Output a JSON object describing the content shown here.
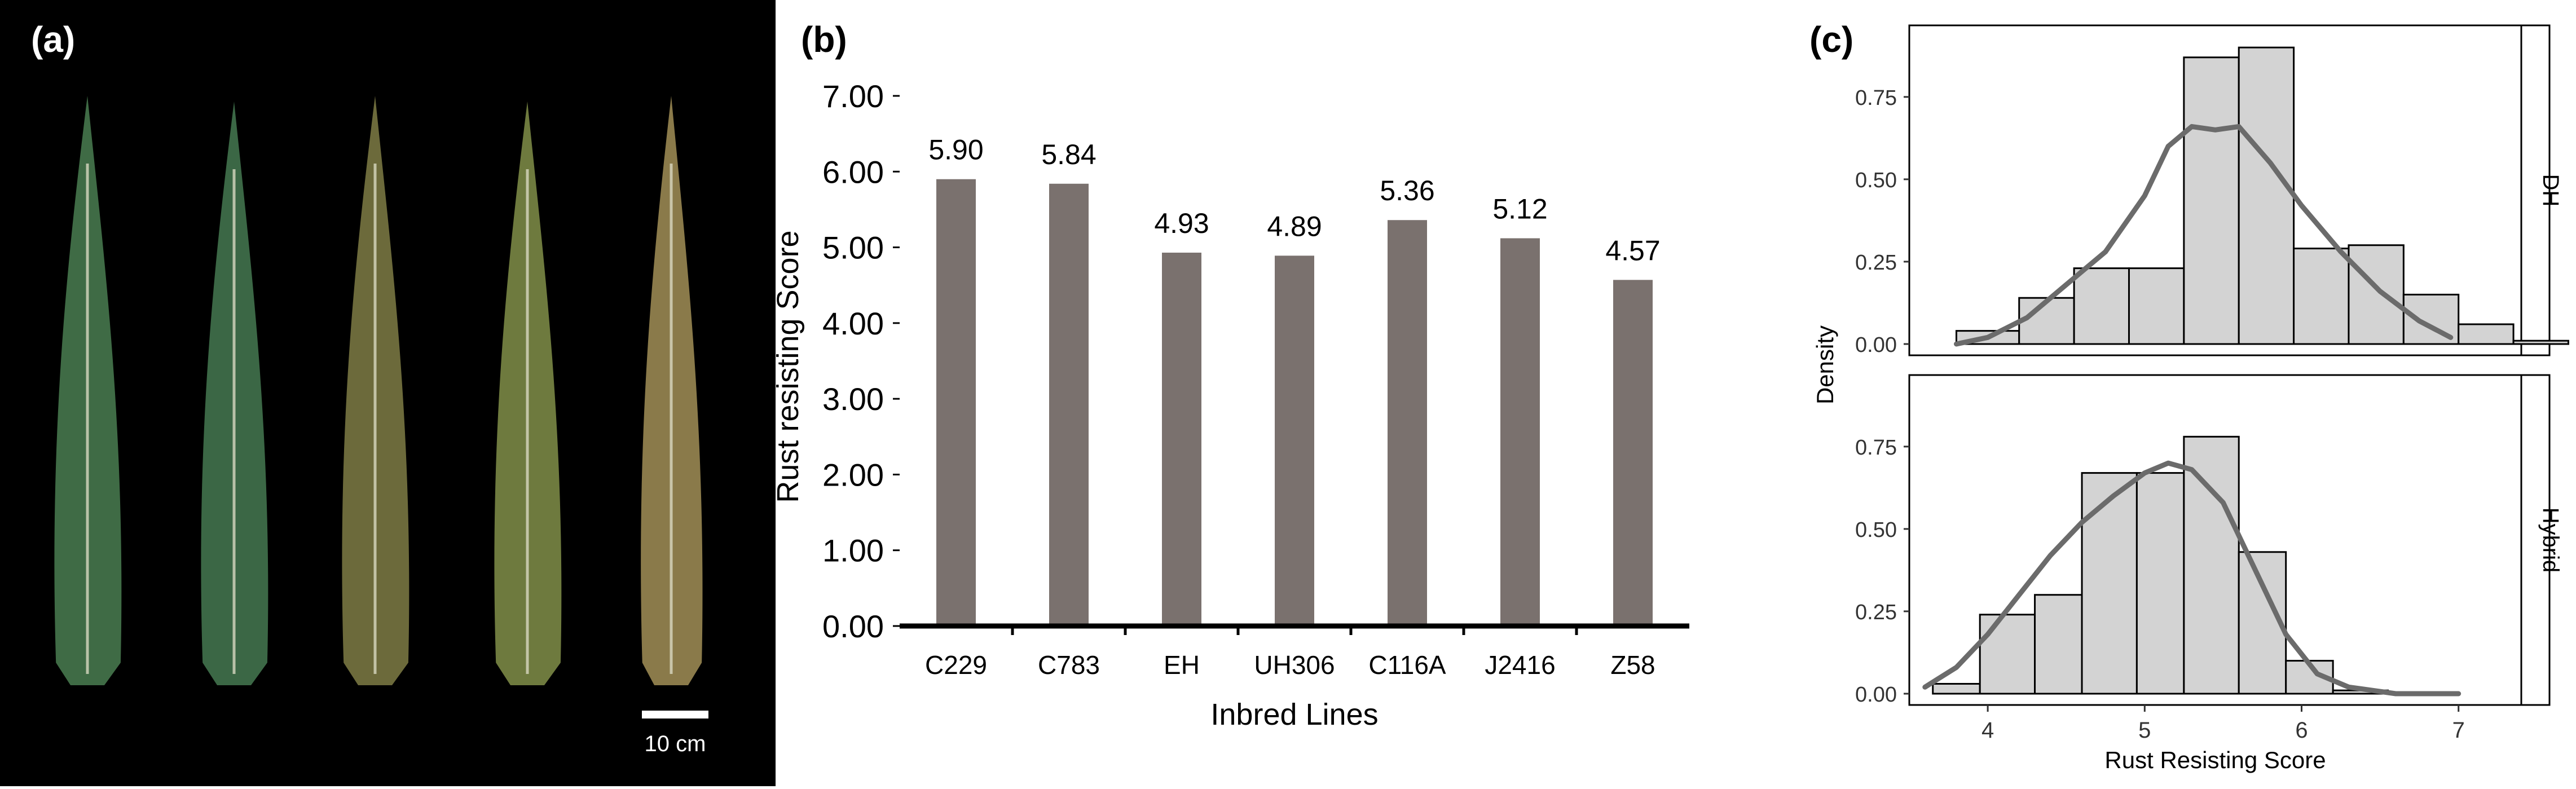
{
  "panel_a": {
    "label": "(a)",
    "scale_bar_label": "10 cm",
    "leaf_colors": [
      "#3f6b45",
      "#3b6745",
      "#6c6a3b",
      "#6e7a3e",
      "#8a7a4a"
    ]
  },
  "panel_b": {
    "label": "(b)"
  },
  "panel_c": {
    "label": "(c)"
  },
  "chart_data": [
    {
      "type": "bar",
      "panel": "(b)",
      "categories": [
        "C229",
        "C783",
        "EH",
        "UH306",
        "C116A",
        "J2416",
        "Z58"
      ],
      "values": [
        5.9,
        5.84,
        4.93,
        4.89,
        5.36,
        5.12,
        4.57
      ],
      "value_labels": [
        "5.90",
        "5.84",
        "4.93",
        "4.89",
        "5.36",
        "5.12",
        "4.57"
      ],
      "title": "",
      "xlabel": "Inbred Lines",
      "ylabel": "Rust resisting Score",
      "ylim": [
        0,
        7
      ],
      "yticks": [
        "0.00",
        "1.00",
        "2.00",
        "3.00",
        "4.00",
        "5.00",
        "6.00",
        "7.00"
      ],
      "bar_color": "#7a716e",
      "grid": false
    },
    {
      "type": "histogram",
      "panel": "(c)",
      "facets": [
        {
          "strip_label": "DH",
          "bins": [
            {
              "x0": 3.8,
              "x1": 4.2,
              "density": 0.04
            },
            {
              "x0": 4.2,
              "x1": 4.55,
              "density": 0.14
            },
            {
              "x0": 4.55,
              "x1": 4.9,
              "density": 0.23
            },
            {
              "x0": 4.9,
              "x1": 5.25,
              "density": 0.23
            },
            {
              "x0": 5.25,
              "x1": 5.6,
              "density": 0.87
            },
            {
              "x0": 5.6,
              "x1": 5.95,
              "density": 0.9
            },
            {
              "x0": 5.95,
              "x1": 6.3,
              "density": 0.29
            },
            {
              "x0": 6.3,
              "x1": 6.65,
              "density": 0.3
            },
            {
              "x0": 6.65,
              "x1": 7.0,
              "density": 0.15
            },
            {
              "x0": 7.0,
              "x1": 7.35,
              "density": 0.06
            },
            {
              "x0": 7.35,
              "x1": 7.7,
              "density": 0.01
            }
          ],
          "density_curve": {
            "x": [
              3.8,
              4.0,
              4.25,
              4.5,
              4.75,
              5.0,
              5.15,
              5.3,
              5.45,
              5.6,
              5.8,
              6.0,
              6.25,
              6.5,
              6.75,
              6.95
            ],
            "y": [
              0.0,
              0.02,
              0.08,
              0.18,
              0.28,
              0.45,
              0.6,
              0.66,
              0.65,
              0.66,
              0.55,
              0.42,
              0.28,
              0.16,
              0.07,
              0.02
            ]
          }
        },
        {
          "strip_label": "Hybrid",
          "bins": [
            {
              "x0": 3.65,
              "x1": 3.95,
              "density": 0.03
            },
            {
              "x0": 3.95,
              "x1": 4.3,
              "density": 0.24
            },
            {
              "x0": 4.3,
              "x1": 4.6,
              "density": 0.3
            },
            {
              "x0": 4.6,
              "x1": 4.95,
              "density": 0.67
            },
            {
              "x0": 4.95,
              "x1": 5.25,
              "density": 0.67
            },
            {
              "x0": 5.25,
              "x1": 5.6,
              "density": 0.78
            },
            {
              "x0": 5.6,
              "x1": 5.9,
              "density": 0.43
            },
            {
              "x0": 5.9,
              "x1": 6.2,
              "density": 0.1
            },
            {
              "x0": 6.2,
              "x1": 6.55,
              "density": 0.01
            },
            {
              "x0": 6.55,
              "x1": 6.9,
              "density": 0.0
            },
            {
              "x0": 6.9,
              "x1": 7.3,
              "density": 0.0
            }
          ],
          "density_curve": {
            "x": [
              3.6,
              3.8,
              4.0,
              4.2,
              4.4,
              4.6,
              4.8,
              5.0,
              5.15,
              5.3,
              5.5,
              5.7,
              5.9,
              6.1,
              6.3,
              6.6,
              7.0
            ],
            "y": [
              0.02,
              0.08,
              0.18,
              0.3,
              0.42,
              0.52,
              0.6,
              0.67,
              0.7,
              0.68,
              0.58,
              0.38,
              0.18,
              0.06,
              0.02,
              0.0,
              0.0
            ]
          }
        }
      ],
      "xlabel": "Rust Resisting Score",
      "ylabel": "Density",
      "xlim": [
        3.5,
        7.4
      ],
      "ylim": [
        0,
        0.95
      ],
      "xticks": [
        "4",
        "5",
        "6",
        "7"
      ],
      "yticks": [
        "0.00",
        "0.25",
        "0.50",
        "0.75"
      ],
      "bar_fill": "#d3d3d3",
      "curve_color": "#6b6b6b"
    }
  ]
}
